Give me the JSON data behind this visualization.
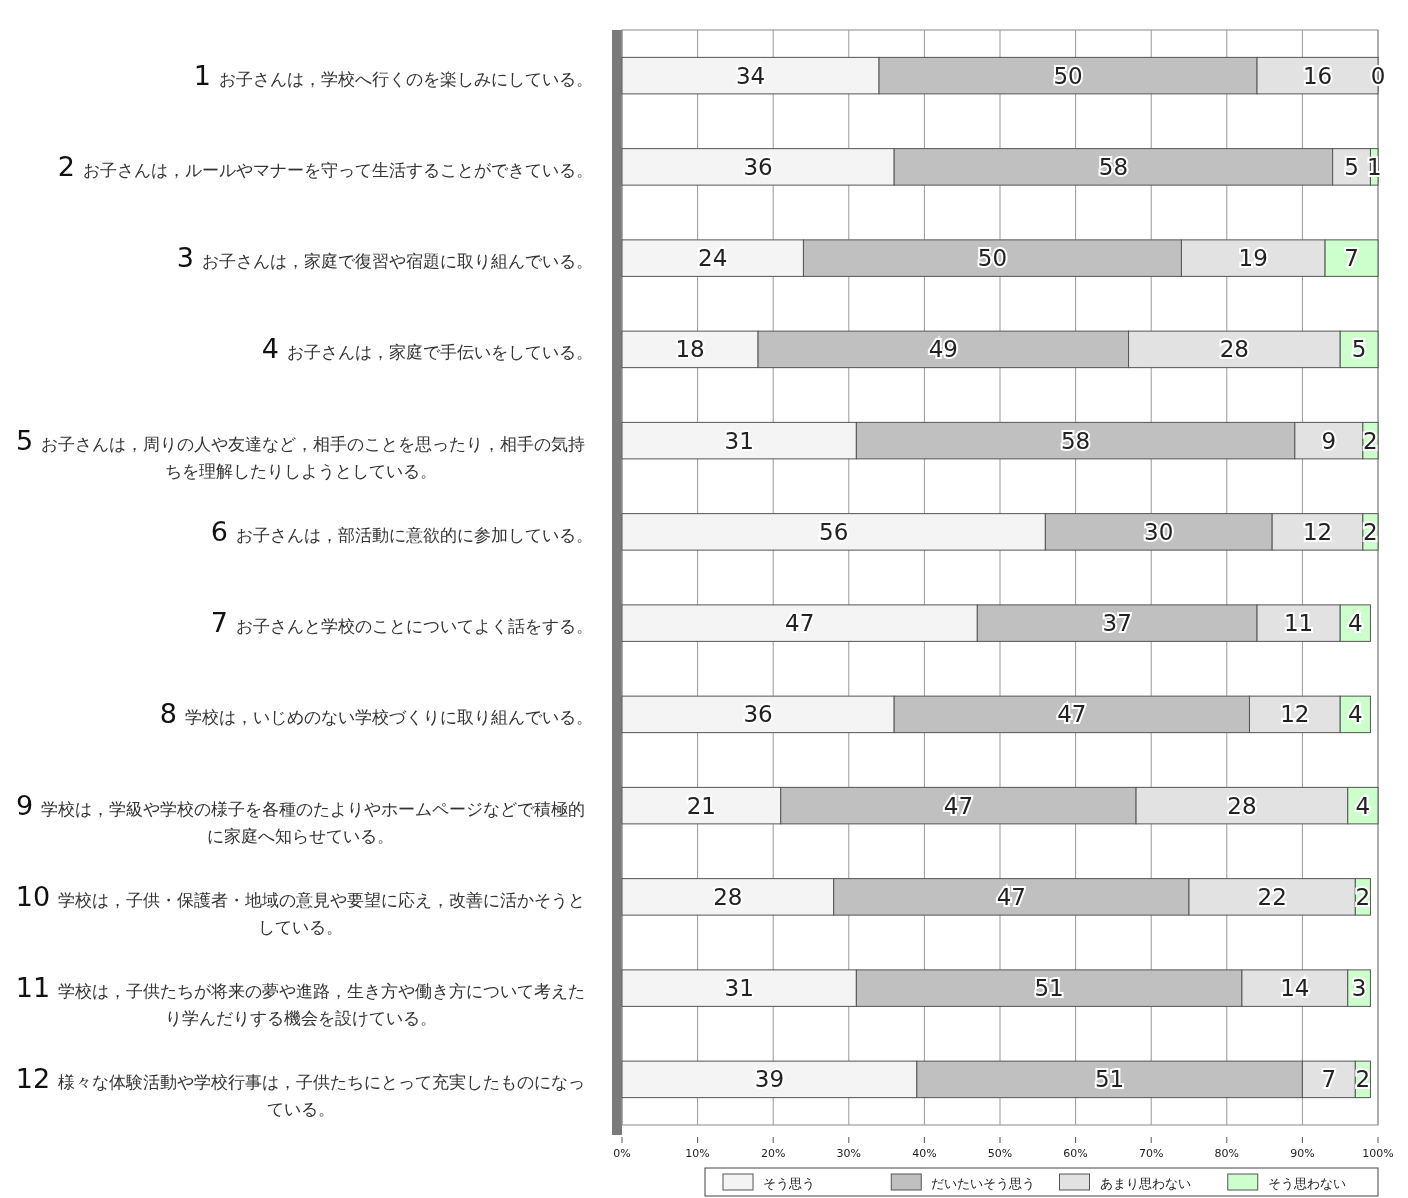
{
  "chart_data": {
    "type": "bar",
    "orientation": "horizontal",
    "stacked": true,
    "data_labels": true,
    "grid": "x",
    "legend": "bottom",
    "categories": [
      "1 お子さんは，学校へ行くのを楽しみにしている。",
      "2 お子さんは，ルールやマナーを守って生活することができている。",
      "3 お子さんは，家庭で復習や宿題に取り組んでいる。",
      "4 お子さんは，家庭で手伝いをしている。",
      "5 お子さんは，周りの人や友達など，相手のことを思ったり，相手の気持ちを理解したりしようとしている。",
      "6 お子さんは，部活動に意欲的に参加している。",
      "7 お子さんと学校のことについてよく話をする。",
      "8 学校は，いじめのない学校づくりに取り組んでいる。",
      "9 学校は，学級や学校の様子を各種のたよりやホームページなどで積極的に家庭へ知らせている。",
      "10 学校は，子供・保護者・地域の意見や要望に応え，改善に活かそうとしている。",
      "11 学校は，子供たちが将来の夢や進路，生き方や働き方について考えたり学んだりする機会を設けている。",
      "12 様々な体験活動や学校行事は，子供たちにとって充実したものになっている。"
    ],
    "xlim": [
      0,
      100
    ],
    "xticks": [
      {
        "value": 0,
        "label": "0%"
      },
      {
        "value": 10,
        "label": "10%"
      },
      {
        "value": 20,
        "label": "20%"
      },
      {
        "value": 30,
        "label": "30%"
      },
      {
        "value": 40,
        "label": "40%"
      },
      {
        "value": 50,
        "label": "50%"
      },
      {
        "value": 60,
        "label": "60%"
      },
      {
        "value": 70,
        "label": "70%"
      },
      {
        "value": 80,
        "label": "80%"
      },
      {
        "value": 90,
        "label": "90%"
      },
      {
        "value": 100,
        "label": "100%"
      }
    ],
    "series": [
      {
        "name": "そう思う",
        "color": "#f4f4f4",
        "values": [
          34,
          36,
          24,
          18,
          31,
          56,
          47,
          36,
          21,
          28,
          31,
          39
        ]
      },
      {
        "name": "だいたいそう思う",
        "color": "#c0c0c0",
        "values": [
          50,
          58,
          50,
          49,
          58,
          30,
          37,
          47,
          47,
          47,
          51,
          51
        ]
      },
      {
        "name": "あまり思わない",
        "color": "#e2e2e2",
        "values": [
          16,
          5,
          19,
          28,
          9,
          12,
          11,
          12,
          28,
          22,
          14,
          7
        ]
      },
      {
        "name": "そう思わない",
        "color": "#ccffcc",
        "values": [
          0,
          1,
          7,
          5,
          2,
          2,
          4,
          4,
          4,
          2,
          3,
          2
        ]
      }
    ]
  }
}
